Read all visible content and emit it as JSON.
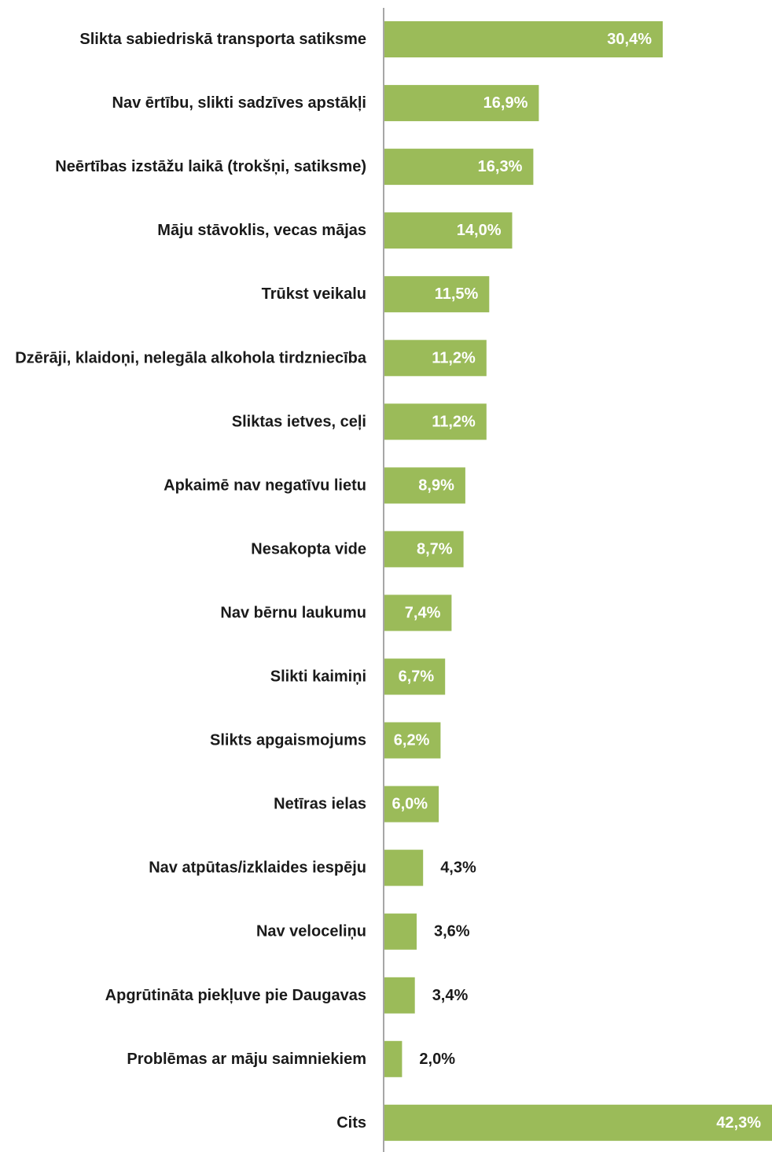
{
  "chart_data": {
    "type": "bar",
    "orientation": "horizontal",
    "categories": [
      "Slikta sabiedriskā transporta satiksme",
      "Nav ērtību, slikti sadzīves apstākļi",
      "Neērtības izstāžu laikā (trokšņi, satiksme)",
      "Māju stāvoklis, vecas mājas",
      "Trūkst veikalu",
      "Dzērāji, klaidoņi, nelegāla alkohola tirdzniecība",
      "Sliktas ietves, ceļi",
      "Apkaimē nav negatīvu lietu",
      "Nesakopta vide",
      "Nav bērnu laukumu",
      "Slikti kaimiņi",
      "Slikts apgaismojums",
      "Netīras ielas",
      "Nav atpūtas/izklaides iespēju",
      "Nav veloceliņu",
      "Apgrūtināta piekļuve pie Daugavas",
      "Problēmas ar māju saimniekiem",
      "Cits"
    ],
    "values": [
      30.4,
      16.9,
      16.3,
      14.0,
      11.5,
      11.2,
      11.2,
      8.9,
      8.7,
      7.4,
      6.7,
      6.2,
      6.0,
      4.3,
      3.6,
      3.4,
      2.0,
      42.3
    ],
    "value_labels": [
      "30,4%",
      "16,9%",
      "16,3%",
      "14,0%",
      "11,5%",
      "11,2%",
      "11,2%",
      "8,9%",
      "8,7%",
      "7,4%",
      "6,7%",
      "6,2%",
      "6,0%",
      "4,3%",
      "3,6%",
      "3,4%",
      "2,0%",
      "42,3%"
    ],
    "unit": "%",
    "xlim": [
      0,
      42.3
    ],
    "grid": false,
    "legend": "none",
    "title": "",
    "xlabel": "",
    "ylabel": "",
    "colors": {
      "bar": "#9bbb59",
      "axis": "#a6a6a6",
      "label_inside": "#ffffff",
      "label_outside": "#1a1a1a",
      "category_text": "#1a1a1a"
    }
  }
}
